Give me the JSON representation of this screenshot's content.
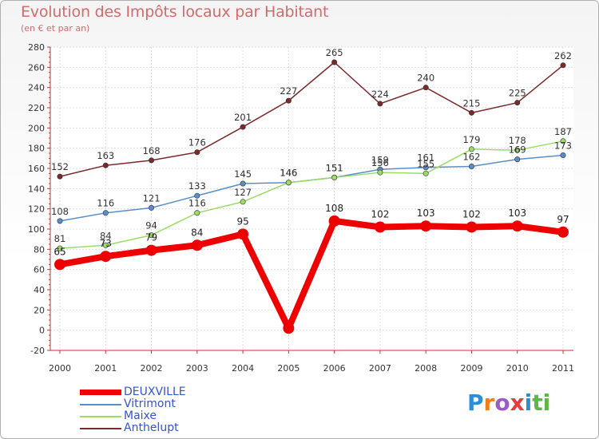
{
  "chart_data": {
    "type": "line",
    "title": "Evolution des Impôts locaux par Habitant",
    "subtitle": "(en € et par an)",
    "categories": [
      "2000",
      "2001",
      "2002",
      "2003",
      "2004",
      "2005",
      "2006",
      "2007",
      "2008",
      "2009",
      "2010",
      "2011"
    ],
    "ylim": [
      -20,
      280
    ],
    "yticks": [
      -20,
      0,
      20,
      40,
      60,
      80,
      100,
      120,
      140,
      160,
      180,
      200,
      220,
      240,
      260,
      280
    ],
    "grid": true,
    "series": [
      {
        "name": "DEUXVILLE",
        "color": "#ee0000",
        "labelColor": "#222222",
        "values": [
          65,
          73,
          79,
          84,
          95,
          2,
          108,
          102,
          103,
          102,
          103,
          97
        ],
        "labels": [
          "65",
          "73",
          "79",
          "84",
          "95",
          "",
          "108",
          "102",
          "103",
          "102",
          "103",
          "97"
        ]
      },
      {
        "name": "Vitrimont",
        "color": "#5b8ec9",
        "labelColor": "#333333",
        "values": [
          108,
          116,
          121,
          133,
          145,
          146,
          151,
          159,
          161,
          162,
          169,
          173
        ],
        "labels": [
          "108",
          "116",
          "121",
          "133",
          "145",
          "146",
          "151",
          "159",
          "161",
          "162",
          "169",
          "173"
        ]
      },
      {
        "name": "Maixe",
        "color": "#99dd66",
        "labelColor": "#333333",
        "values": [
          81,
          84,
          94,
          116,
          127,
          146,
          151,
          156,
          155,
          179,
          178,
          187
        ],
        "labels": [
          "81",
          "84",
          "94",
          "116",
          "127",
          "146",
          "151",
          "156",
          "155",
          "179",
          "178",
          "187"
        ]
      },
      {
        "name": "Anthelupt",
        "color": "#7a2a2a",
        "labelColor": "#333333",
        "values": [
          152,
          163,
          168,
          176,
          201,
          227,
          265,
          224,
          240,
          215,
          225,
          262
        ],
        "labels": [
          "152",
          "163",
          "168",
          "176",
          "201",
          "227",
          "265",
          "224",
          "240",
          "215",
          "225",
          "262"
        ]
      }
    ]
  },
  "legend": [
    {
      "name": "DEUXVILLE",
      "color": "#ee0000"
    },
    {
      "name": "Vitrimont",
      "color": "#5b8ec9"
    },
    {
      "name": "Maixe",
      "color": "#99dd66"
    },
    {
      "name": "Anthelupt",
      "color": "#7a2a2a"
    }
  ],
  "logo": {
    "p": "P",
    "r": "r",
    "o": "o",
    "x": "x",
    "i": "i",
    "ti": "ti"
  }
}
